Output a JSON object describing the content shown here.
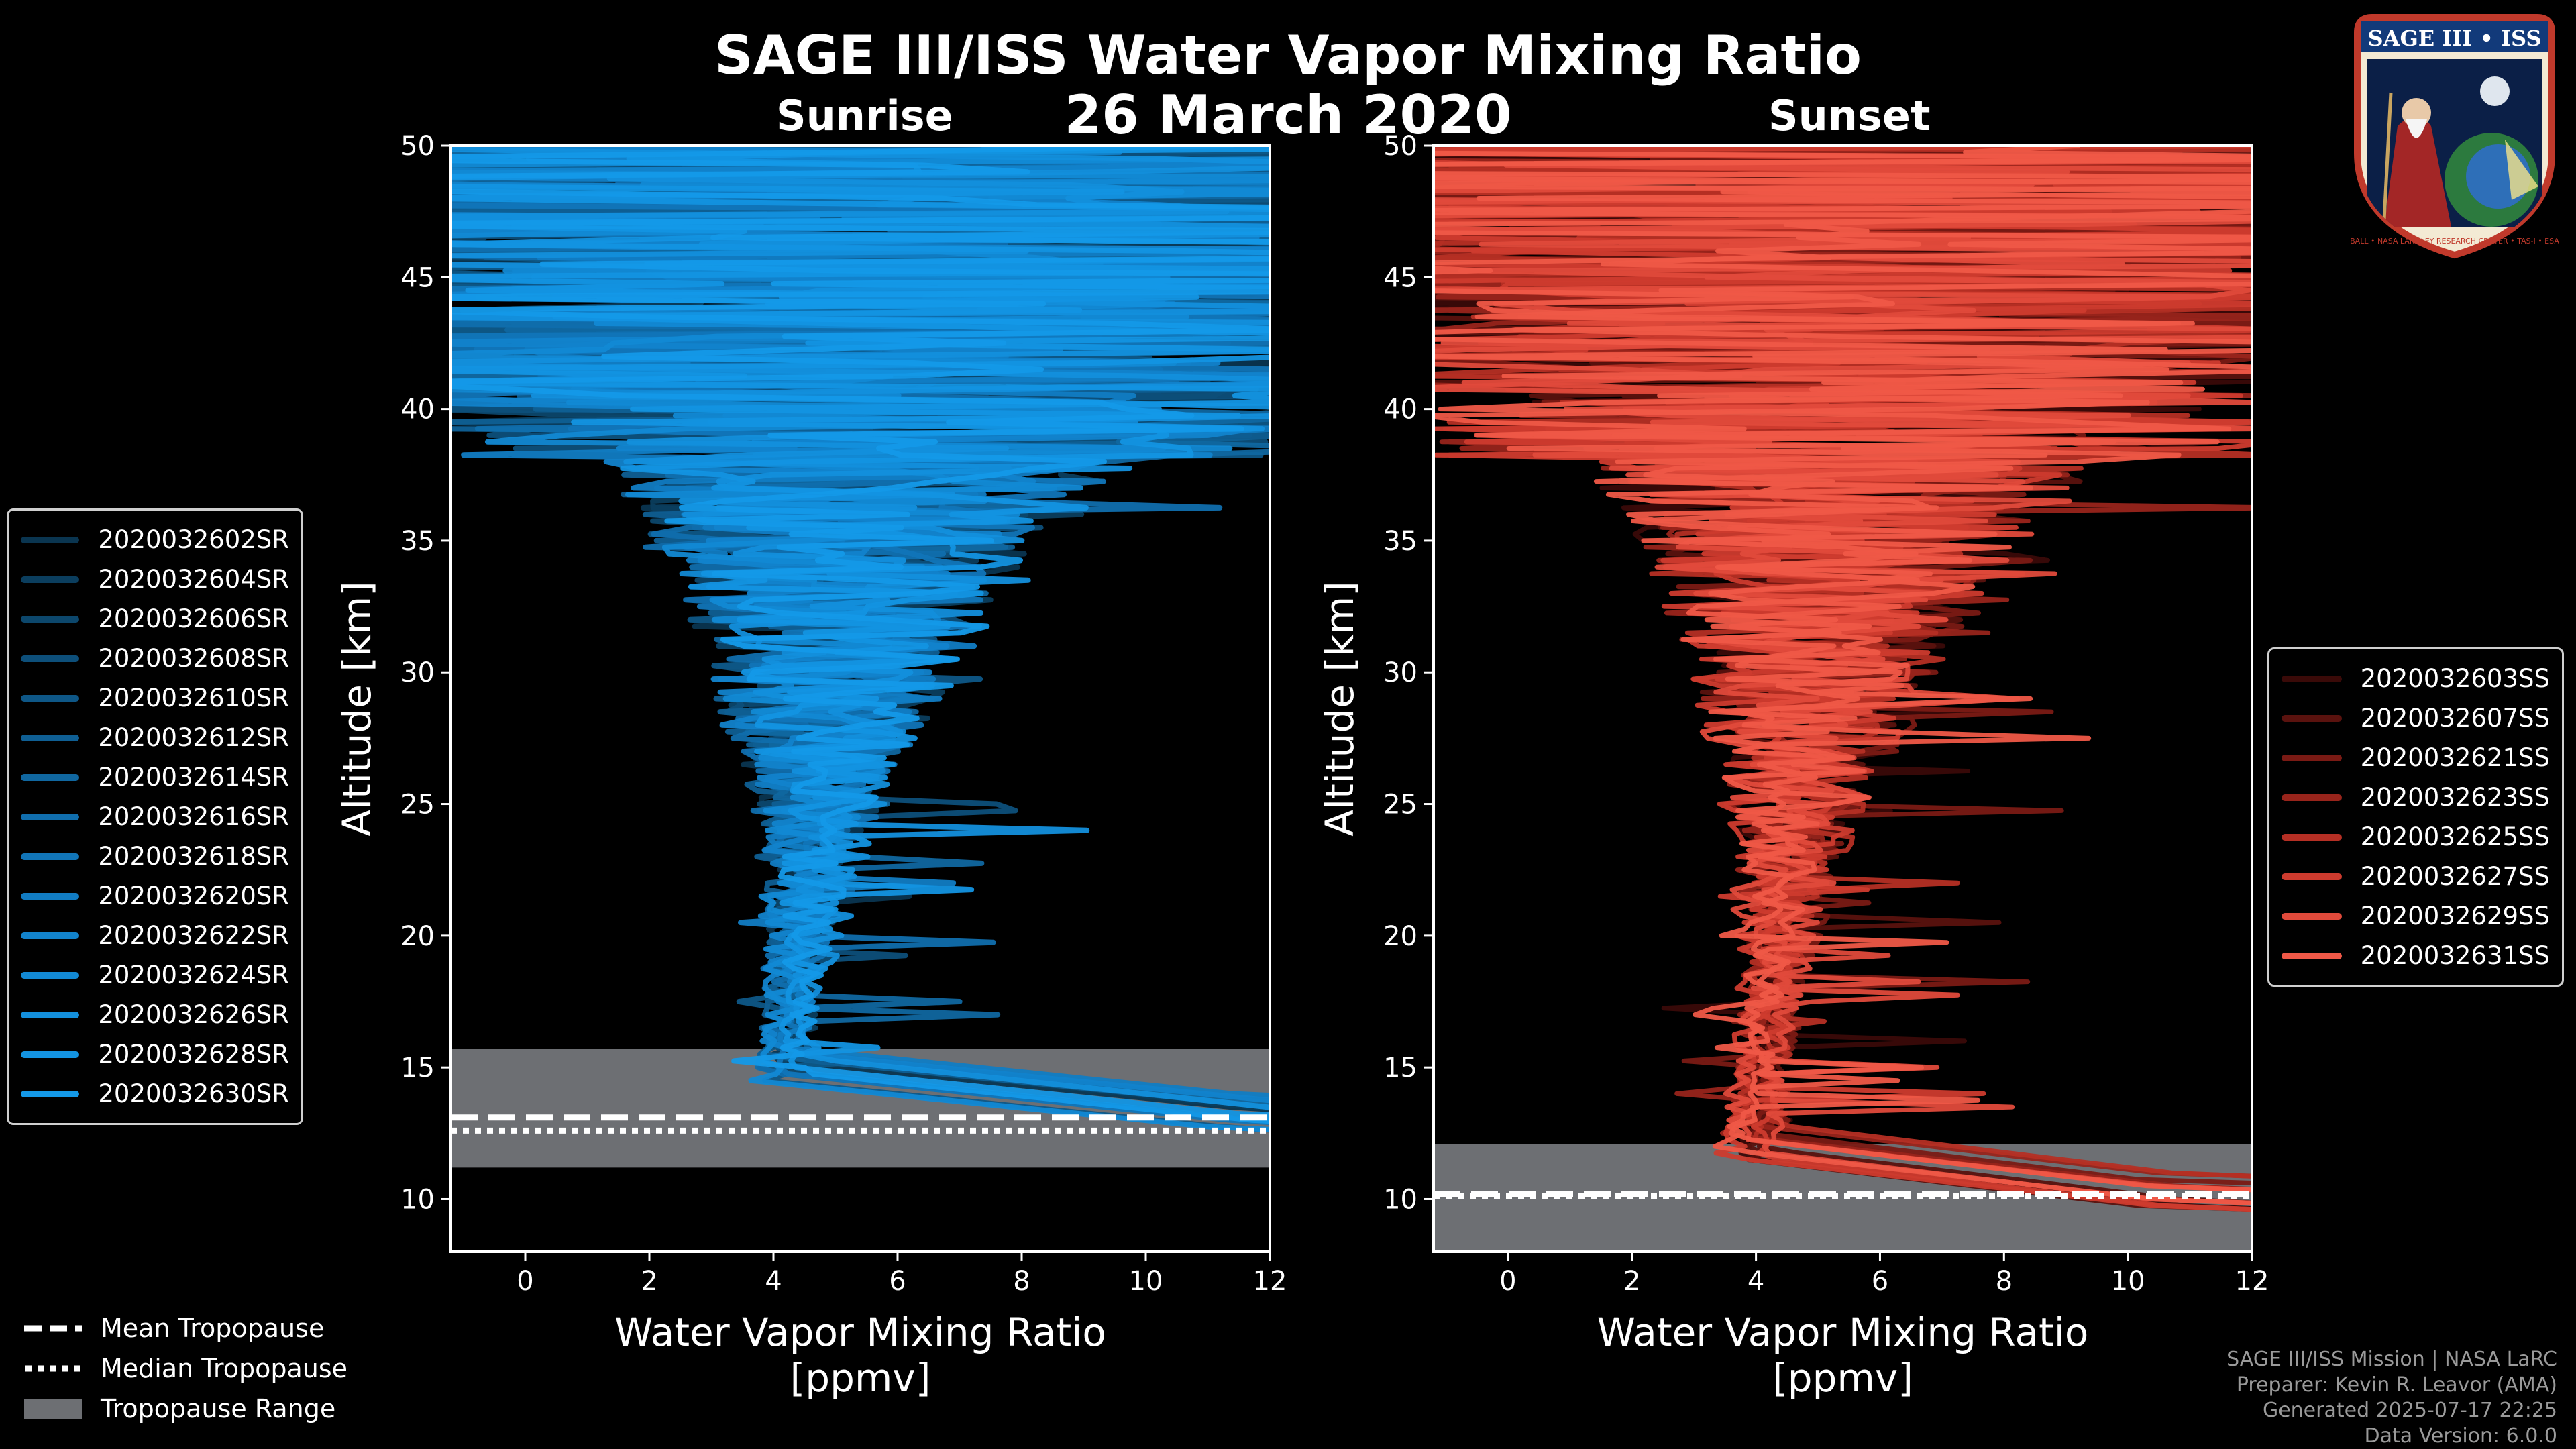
{
  "header": {
    "title": "SAGE III/ISS Water Vapor Mixing Ratio",
    "date": "26 March 2020",
    "left_subtitle": "Sunrise",
    "right_subtitle": "Sunset"
  },
  "chart_data": [
    {
      "type": "line",
      "panel": "Sunrise",
      "xlabel": "Water Vapor Mixing Ratio [ppmv]",
      "ylabel": "Altitude [km]",
      "xlim": [
        -1.2,
        12
      ],
      "ylim": [
        8,
        50
      ],
      "xticks": [
        0,
        2,
        4,
        6,
        8,
        10,
        12
      ],
      "yticks": [
        10,
        15,
        20,
        25,
        30,
        35,
        40,
        45,
        50
      ],
      "tropopause": {
        "mean_km": 13.1,
        "median_km": 12.6,
        "range_km": [
          11.2,
          15.7
        ]
      },
      "series": [
        {
          "name": "2020032602SR",
          "color": "#0a3550"
        },
        {
          "name": "2020032604SR",
          "color": "#0b3e5e"
        },
        {
          "name": "2020032606SR",
          "color": "#0c476c"
        },
        {
          "name": "2020032608SR",
          "color": "#0d4f7a"
        },
        {
          "name": "2020032610SR",
          "color": "#0e5787"
        },
        {
          "name": "2020032612SR",
          "color": "#0f5f94"
        },
        {
          "name": "2020032614SR",
          "color": "#1067a0"
        },
        {
          "name": "2020032616SR",
          "color": "#106ead"
        },
        {
          "name": "2020032618SR",
          "color": "#1175b8"
        },
        {
          "name": "2020032620SR",
          "color": "#117cc3"
        },
        {
          "name": "2020032622SR",
          "color": "#1283cc"
        },
        {
          "name": "2020032624SR",
          "color": "#1289d4"
        },
        {
          "name": "2020032626SR",
          "color": "#138fdc"
        },
        {
          "name": "2020032628SR",
          "color": "#1394e2"
        },
        {
          "name": "2020032630SR",
          "color": "#1499e8"
        }
      ]
    },
    {
      "type": "line",
      "panel": "Sunset",
      "xlabel": "Water Vapor Mixing Ratio [ppmv]",
      "ylabel": "Altitude [km]",
      "xlim": [
        -1.2,
        12
      ],
      "ylim": [
        8,
        50
      ],
      "xticks": [
        0,
        2,
        4,
        6,
        8,
        10,
        12
      ],
      "yticks": [
        10,
        15,
        20,
        25,
        30,
        35,
        40,
        45,
        50
      ],
      "tropopause": {
        "mean_km": 10.2,
        "median_km": 10.1,
        "range_km": [
          8,
          12.1
        ]
      },
      "series": [
        {
          "name": "2020032603SS",
          "color": "#3a0a08"
        },
        {
          "name": "2020032607SS",
          "color": "#5a120e"
        },
        {
          "name": "2020032621SS",
          "color": "#7a1a14"
        },
        {
          "name": "2020032623SS",
          "color": "#98241b"
        },
        {
          "name": "2020032625SS",
          "color": "#b52f24"
        },
        {
          "name": "2020032627SS",
          "color": "#cd3b2e"
        },
        {
          "name": "2020032629SS",
          "color": "#e04a3b"
        },
        {
          "name": "2020032631SS",
          "color": "#ef5847"
        }
      ]
    }
  ],
  "tropopause_legend": {
    "mean": "Mean Tropopause",
    "median": "Median Tropopause",
    "range": "Tropopause Range"
  },
  "credits": {
    "line1": "SAGE III/ISS Mission | NASA LaRC",
    "line2": "Preparer: Kevin R. Leavor (AMA)",
    "line3": "Generated 2025-07-17 22:25",
    "line4": "Data Version: 6.0.0"
  },
  "logo": {
    "top_text": "SAGE III • ISS",
    "bottom_text": "BALL • NASA LANGLEY RESEARCH CENTER • TAS-I • ESA"
  },
  "colors": {
    "sunrise": "#1499e8",
    "sunset": "#ef5847",
    "trop_range": "#6d6f73"
  }
}
